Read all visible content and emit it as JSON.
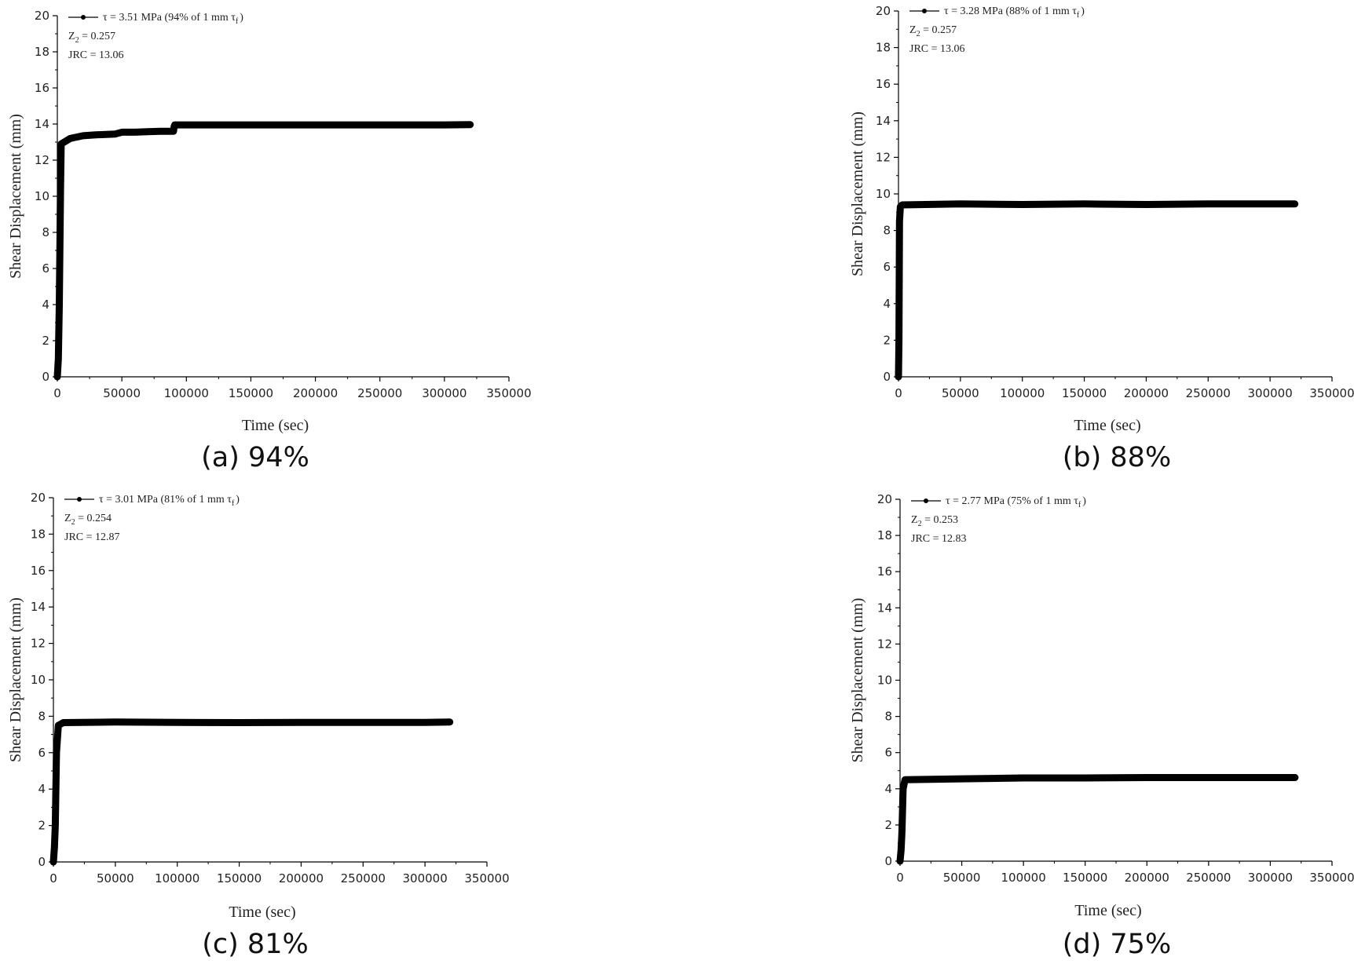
{
  "chart_data": [
    {
      "type": "line",
      "caption": "(a) 94%",
      "xlabel": "Time (sec)",
      "ylabel": "Shear Displacement (mm)",
      "xlim": [
        0,
        350000
      ],
      "ylim": [
        0,
        20
      ],
      "xticks": [
        "0",
        "50000",
        "100000",
        "150000",
        "200000",
        "250000",
        "300000",
        "350000"
      ],
      "yticks": [
        "0",
        "2",
        "4",
        "6",
        "8",
        "10",
        "12",
        "14",
        "16",
        "18",
        "20"
      ],
      "legend": {
        "series": "τ = 3.51 MPa (94% of 1 mm τ",
        "series_sub": "f",
        "series_close": ")",
        "z2": "0.257",
        "z2_prefix": "Z",
        "z2_sub": "2",
        "jrc": "JRC = 13.06"
      },
      "series": [
        {
          "name": "τ = 3.51 MPa",
          "x": [
            0,
            800,
            1500,
            2500,
            3000,
            10000,
            20000,
            30000,
            45000,
            50000,
            60000,
            70000,
            80000,
            90000,
            90500,
            91000,
            100000,
            150000,
            200000,
            250000,
            300000,
            320000
          ],
          "y": [
            0,
            1.0,
            4.0,
            10.5,
            12.9,
            13.2,
            13.35,
            13.4,
            13.45,
            13.55,
            13.55,
            13.58,
            13.6,
            13.6,
            13.85,
            13.95,
            13.95,
            13.95,
            13.95,
            13.95,
            13.95,
            13.97
          ]
        }
      ]
    },
    {
      "type": "line",
      "caption": "(b) 88%",
      "xlabel": "Time (sec)",
      "ylabel": "Shear Displacement (mm)",
      "xlim": [
        0,
        350000
      ],
      "ylim": [
        0,
        20
      ],
      "xticks": [
        "0",
        "50000",
        "100000",
        "150000",
        "200000",
        "250000",
        "300000",
        "350000"
      ],
      "yticks": [
        "0",
        "2",
        "4",
        "6",
        "8",
        "10",
        "12",
        "14",
        "16",
        "18",
        "20"
      ],
      "legend": {
        "series": "τ = 3.28 MPa (88% of 1 mm τ",
        "series_sub": "f",
        "series_close": ")",
        "z2": "0.257",
        "z2_prefix": "Z",
        "z2_sub": "2",
        "jrc": "JRC = 13.06"
      },
      "series": [
        {
          "name": "τ = 3.28 MPa",
          "x": [
            0,
            400,
            800,
            1500,
            3000,
            50000,
            100000,
            150000,
            200000,
            250000,
            300000,
            320000
          ],
          "y": [
            0,
            2.0,
            8.5,
            9.3,
            9.4,
            9.45,
            9.42,
            9.45,
            9.42,
            9.45,
            9.45,
            9.45
          ]
        }
      ]
    },
    {
      "type": "line",
      "caption": "(c) 81%",
      "xlabel": "Time (sec)",
      "ylabel": "Shear Displacement (mm)",
      "xlim": [
        0,
        350000
      ],
      "ylim": [
        0,
        20
      ],
      "xticks": [
        "0",
        "50000",
        "100000",
        "150000",
        "200000",
        "250000",
        "300000",
        "350000"
      ],
      "yticks": [
        "0",
        "2",
        "4",
        "6",
        "8",
        "10",
        "12",
        "14",
        "16",
        "18",
        "20"
      ],
      "legend": {
        "series": "τ = 3.01 MPa (81% of 1 mm τ",
        "series_sub": "f",
        "series_close": ")",
        "z2": "0.254",
        "z2_prefix": "Z",
        "z2_sub": "2",
        "jrc": "JRC = 12.87"
      },
      "series": [
        {
          "name": "τ = 3.01 MPa",
          "x": [
            0,
            800,
            1500,
            2500,
            4000,
            8000,
            50000,
            100000,
            150000,
            200000,
            250000,
            300000,
            320000
          ],
          "y": [
            0,
            0.8,
            2.0,
            6.0,
            7.5,
            7.65,
            7.68,
            7.66,
            7.65,
            7.66,
            7.66,
            7.66,
            7.68
          ]
        }
      ]
    },
    {
      "type": "line",
      "caption": "(d) 75%",
      "xlabel": "Time (sec)",
      "ylabel": "Shear Displacement (mm)",
      "xlim": [
        0,
        350000
      ],
      "ylim": [
        0,
        20
      ],
      "xticks": [
        "0",
        "50000",
        "100000",
        "150000",
        "200000",
        "250000",
        "300000",
        "350000"
      ],
      "yticks": [
        "0",
        "2",
        "4",
        "6",
        "8",
        "10",
        "12",
        "14",
        "16",
        "18",
        "20"
      ],
      "legend": {
        "series": "τ = 2.77 MPa (75% of 1 mm τ",
        "series_sub": "f",
        "series_close": ")",
        "z2": "0.253",
        "z2_prefix": "Z",
        "z2_sub": "2",
        "jrc": "JRC = 12.83"
      },
      "series": [
        {
          "name": "τ = 2.77 MPa",
          "x": [
            0,
            800,
            1500,
            2500,
            4000,
            50000,
            100000,
            150000,
            200000,
            250000,
            300000,
            320000
          ],
          "y": [
            0,
            0.6,
            1.6,
            4.0,
            4.5,
            4.55,
            4.6,
            4.6,
            4.62,
            4.62,
            4.62,
            4.62
          ]
        }
      ]
    }
  ]
}
